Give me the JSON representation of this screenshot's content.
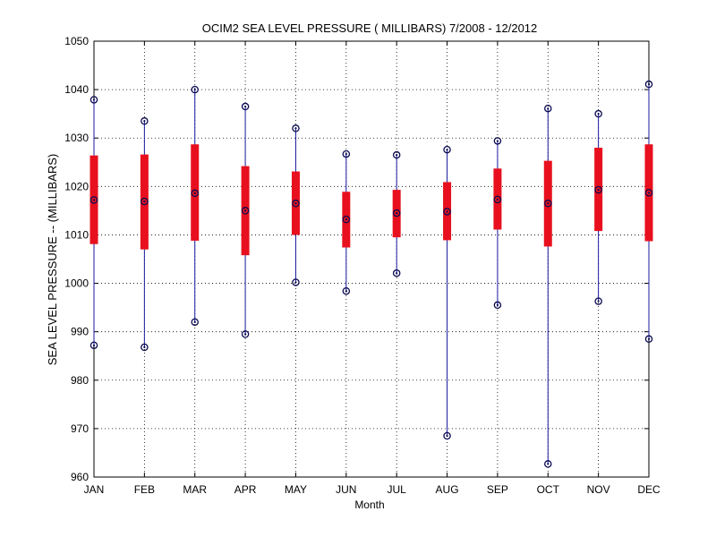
{
  "chart_data": {
    "type": "box",
    "title": "OCIM2  SEA LEVEL PRESSURE ( MILLIBARS) 7/2008 - 12/2012",
    "xlabel": "Month",
    "ylabel": "SEA LEVEL PRESSURE -- (MILLIBARS)",
    "ylim": [
      960,
      1050
    ],
    "yticks": [
      960,
      970,
      980,
      990,
      1000,
      1010,
      1020,
      1030,
      1040,
      1050
    ],
    "grid": true,
    "categories": [
      "JAN",
      "FEB",
      "MAR",
      "APR",
      "MAY",
      "JUN",
      "JUL",
      "AUG",
      "SEP",
      "OCT",
      "NOV",
      "DEC"
    ],
    "series": [
      {
        "name": "min",
        "values": [
          987.2,
          986.8,
          992.0,
          989.5,
          1000.2,
          998.4,
          1002.1,
          968.5,
          995.5,
          962.7,
          996.3,
          988.5
        ]
      },
      {
        "name": "q1",
        "values": [
          1008.1,
          1007.0,
          1008.8,
          1005.8,
          1010.0,
          1007.4,
          1009.5,
          1008.9,
          1011.1,
          1007.6,
          1010.8,
          1008.7
        ]
      },
      {
        "name": "median",
        "values": [
          1017.2,
          1016.9,
          1018.6,
          1015.0,
          1016.5,
          1013.2,
          1014.5,
          1014.8,
          1017.3,
          1016.5,
          1019.3,
          1018.7
        ]
      },
      {
        "name": "q3",
        "values": [
          1026.4,
          1026.6,
          1028.7,
          1024.2,
          1023.1,
          1018.9,
          1019.3,
          1020.9,
          1023.7,
          1025.3,
          1028.0,
          1028.7
        ]
      },
      {
        "name": "max",
        "values": [
          1037.9,
          1033.5,
          1040.0,
          1036.5,
          1032.0,
          1026.7,
          1026.5,
          1027.6,
          1029.4,
          1036.1,
          1035.0,
          1041.1
        ]
      }
    ],
    "colors": {
      "box": "#e8101e",
      "whisker": "#1a1aa0",
      "marker": "#0a0a50",
      "grid": "#000000",
      "axis": "#000000"
    }
  }
}
